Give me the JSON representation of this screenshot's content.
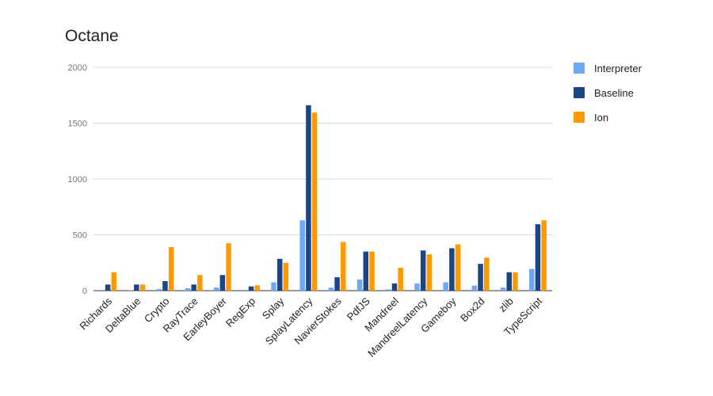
{
  "chart_data": {
    "type": "bar",
    "title": "Octane",
    "xlabel": "",
    "ylabel": "",
    "ylim": [
      0,
      2000
    ],
    "yticks": [
      0,
      500,
      1000,
      1500,
      2000
    ],
    "grid": true,
    "legend_position": "right",
    "categories": [
      "Richards",
      "DeltaBlue",
      "Crypto",
      "RayTrace",
      "EarleyBoyer",
      "RegExp",
      "Splay",
      "SplayLatency",
      "NavierStokes",
      "PdfJS",
      "Mandreel",
      "MandreelLatency",
      "Gameboy",
      "Box2d",
      "zlib",
      "TypeScript"
    ],
    "series": [
      {
        "name": "Interpreter",
        "color": "#6fa8f5",
        "values": [
          8,
          5,
          15,
          22,
          28,
          7,
          75,
          630,
          28,
          100,
          12,
          65,
          75,
          45,
          28,
          195
        ]
      },
      {
        "name": "Baseline",
        "color": "#1c4587",
        "values": [
          55,
          55,
          85,
          55,
          140,
          38,
          285,
          1660,
          120,
          350,
          65,
          360,
          380,
          240,
          165,
          595
        ]
      },
      {
        "name": "Ion",
        "color": "#ff9900",
        "values": [
          165,
          55,
          390,
          140,
          425,
          48,
          250,
          1595,
          435,
          350,
          205,
          325,
          415,
          295,
          165,
          630
        ]
      }
    ]
  }
}
